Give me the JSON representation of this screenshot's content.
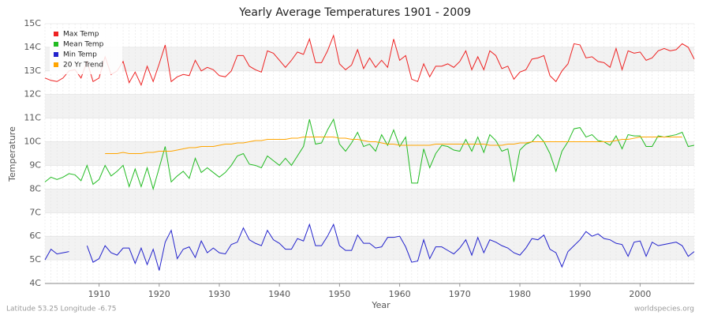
{
  "chart_data": {
    "type": "line",
    "title": "Yearly Average Temperatures 1901 - 2009",
    "x_label": "Year",
    "y_label": "Temperature",
    "footer_left": "Latitude 53.25 Longitude -6.75",
    "footer_right": "worldspecies.org",
    "legend": "top-left",
    "grid": true,
    "xlim": [
      1901,
      2009
    ],
    "xticks": [
      1910,
      1920,
      1930,
      1940,
      1950,
      1960,
      1970,
      1980,
      1990,
      2000
    ],
    "ylim": [
      4,
      15
    ],
    "yticks": [
      {
        "value": 4,
        "label": "4C"
      },
      {
        "value": 5,
        "label": "5C"
      },
      {
        "value": 6,
        "label": "6C"
      },
      {
        "value": 7,
        "label": "7C"
      },
      {
        "value": 8,
        "label": "8C"
      },
      {
        "value": 9,
        "label": "9C"
      },
      {
        "value": 10,
        "label": "10C"
      },
      {
        "value": 11,
        "label": "11C"
      },
      {
        "value": 12,
        "label": "12C"
      },
      {
        "value": 13,
        "label": "13C"
      },
      {
        "value": 14,
        "label": "14C"
      },
      {
        "value": 15,
        "label": "15C"
      }
    ],
    "x": [
      1901,
      1902,
      1903,
      1904,
      1905,
      1906,
      1907,
      1908,
      1909,
      1910,
      1911,
      1912,
      1913,
      1914,
      1915,
      1916,
      1917,
      1918,
      1919,
      1920,
      1921,
      1922,
      1923,
      1924,
      1925,
      1926,
      1927,
      1928,
      1929,
      1930,
      1931,
      1932,
      1933,
      1934,
      1935,
      1936,
      1937,
      1938,
      1939,
      1940,
      1941,
      1942,
      1943,
      1944,
      1945,
      1946,
      1947,
      1948,
      1949,
      1950,
      1951,
      1952,
      1953,
      1954,
      1955,
      1956,
      1957,
      1958,
      1959,
      1960,
      1961,
      1962,
      1963,
      1964,
      1965,
      1966,
      1967,
      1968,
      1969,
      1970,
      1971,
      1972,
      1973,
      1974,
      1975,
      1976,
      1977,
      1978,
      1979,
      1980,
      1981,
      1982,
      1983,
      1984,
      1985,
      1986,
      1987,
      1988,
      1989,
      1990,
      1991,
      1992,
      1993,
      1994,
      1995,
      1996,
      1997,
      1998,
      1999,
      2000,
      2001,
      2002,
      2003,
      2004,
      2005,
      2006,
      2007,
      2008,
      2009
    ],
    "series": [
      {
        "name": "Max Temp",
        "color": "#ee2222",
        "values": [
          12.7,
          12.6,
          12.55,
          12.7,
          13.0,
          13.05,
          12.7,
          13.4,
          12.55,
          12.7,
          13.6,
          12.85,
          13.0,
          13.4,
          12.5,
          12.95,
          12.4,
          13.2,
          12.55,
          13.3,
          14.1,
          12.55,
          12.75,
          12.85,
          12.8,
          13.45,
          13.0,
          13.15,
          13.05,
          12.8,
          12.75,
          13.0,
          13.65,
          13.65,
          13.2,
          13.05,
          12.95,
          13.85,
          13.75,
          13.45,
          13.15,
          13.45,
          13.8,
          13.7,
          14.35,
          13.35,
          13.35,
          13.85,
          14.5,
          13.3,
          13.05,
          13.25,
          13.9,
          13.1,
          13.55,
          13.15,
          13.45,
          13.15,
          14.35,
          13.45,
          13.65,
          12.65,
          12.55,
          13.3,
          12.75,
          13.2,
          13.2,
          13.3,
          13.15,
          13.4,
          13.85,
          13.05,
          13.6,
          13.05,
          13.85,
          13.65,
          13.1,
          13.2,
          12.65,
          12.95,
          13.05,
          13.5,
          13.55,
          13.65,
          12.8,
          12.55,
          13.0,
          13.3,
          14.15,
          14.1,
          13.55,
          13.6,
          13.4,
          13.35,
          13.15,
          13.95,
          13.05,
          13.85,
          13.75,
          13.8,
          13.45,
          13.55,
          13.85,
          13.95,
          13.85,
          13.9,
          14.15,
          14.0,
          13.5
        ]
      },
      {
        "name": "Mean Temp",
        "color": "#22bb22",
        "values": [
          8.3,
          8.5,
          8.4,
          8.5,
          8.65,
          8.6,
          8.35,
          9.0,
          8.2,
          8.4,
          9.0,
          8.55,
          8.75,
          9.0,
          8.1,
          8.85,
          8.1,
          8.9,
          8.0,
          8.9,
          9.8,
          8.3,
          8.55,
          8.75,
          8.45,
          9.3,
          8.7,
          8.9,
          8.7,
          8.5,
          8.7,
          9.0,
          9.4,
          9.5,
          9.05,
          9.0,
          8.9,
          9.4,
          9.2,
          9.0,
          9.3,
          9.0,
          9.4,
          9.8,
          10.95,
          9.9,
          9.95,
          10.5,
          10.95,
          9.9,
          9.6,
          9.95,
          10.4,
          9.8,
          9.9,
          9.6,
          10.3,
          9.85,
          10.5,
          9.8,
          10.2,
          8.25,
          8.25,
          9.7,
          8.9,
          9.5,
          9.85,
          9.8,
          9.65,
          9.6,
          10.1,
          9.6,
          10.2,
          9.55,
          10.3,
          10.05,
          9.6,
          9.7,
          8.3,
          9.65,
          9.9,
          10.0,
          10.3,
          10.0,
          9.5,
          8.75,
          9.6,
          10.0,
          10.55,
          10.6,
          10.2,
          10.3,
          10.05,
          10.0,
          9.85,
          10.25,
          9.7,
          10.3,
          10.25,
          10.25,
          9.8,
          9.8,
          10.25,
          10.2,
          10.25,
          10.3,
          10.4,
          9.8,
          9.85
        ]
      },
      {
        "name": "Min Temp",
        "color": "#2222cc",
        "values": [
          5.0,
          5.45,
          5.25,
          5.3,
          5.35,
          null,
          null,
          5.6,
          4.9,
          5.05,
          5.6,
          5.3,
          5.2,
          5.5,
          5.5,
          4.85,
          5.5,
          4.8,
          5.45,
          4.55,
          5.75,
          6.25,
          5.05,
          5.45,
          5.55,
          5.1,
          5.8,
          5.3,
          5.5,
          5.3,
          5.25,
          5.65,
          5.75,
          6.35,
          5.85,
          5.7,
          5.6,
          6.25,
          5.85,
          5.7,
          5.45,
          5.45,
          5.9,
          5.8,
          6.5,
          5.6,
          5.6,
          6.0,
          6.5,
          5.6,
          5.4,
          5.4,
          6.05,
          5.7,
          5.7,
          5.5,
          5.55,
          5.95,
          5.95,
          6.0,
          5.55,
          4.9,
          4.95,
          5.85,
          5.05,
          5.55,
          5.55,
          5.4,
          5.25,
          5.5,
          5.85,
          5.2,
          5.95,
          5.3,
          5.85,
          5.75,
          5.6,
          5.5,
          5.3,
          5.2,
          5.5,
          5.9,
          5.85,
          6.05,
          5.45,
          5.3,
          4.7,
          5.35,
          5.6,
          5.85,
          6.2,
          6.0,
          6.1,
          5.9,
          5.85,
          5.7,
          5.65,
          5.15,
          5.75,
          5.8,
          5.15,
          5.75,
          5.6,
          5.65,
          5.7,
          5.75,
          5.6,
          5.15,
          5.35
        ]
      },
      {
        "name": "20 Yr Trend",
        "color": "#ffa500",
        "values": [
          null,
          null,
          null,
          null,
          null,
          null,
          null,
          null,
          null,
          null,
          9.5,
          9.5,
          9.5,
          9.55,
          9.5,
          9.5,
          9.5,
          9.55,
          9.55,
          9.6,
          9.6,
          9.6,
          9.65,
          9.7,
          9.75,
          9.75,
          9.8,
          9.8,
          9.8,
          9.85,
          9.9,
          9.9,
          9.95,
          9.95,
          10.0,
          10.05,
          10.05,
          10.1,
          10.1,
          10.1,
          10.1,
          10.15,
          10.15,
          10.2,
          10.2,
          10.2,
          10.2,
          10.2,
          10.2,
          10.15,
          10.15,
          10.1,
          10.1,
          10.05,
          10.0,
          10.0,
          9.95,
          9.9,
          9.9,
          9.85,
          9.85,
          9.85,
          9.85,
          9.85,
          9.85,
          9.9,
          9.9,
          9.9,
          9.9,
          9.9,
          9.9,
          9.9,
          9.9,
          9.9,
          9.85,
          9.85,
          9.85,
          9.9,
          9.9,
          9.95,
          9.95,
          10.0,
          10.0,
          10.0,
          10.0,
          10.0,
          10.0,
          10.0,
          10.0,
          10.0,
          10.0,
          10.0,
          10.0,
          10.0,
          10.0,
          10.05,
          10.1,
          10.1,
          10.15,
          10.2,
          10.2,
          10.2,
          10.2,
          10.2,
          10.2,
          10.2,
          10.2,
          null,
          null
        ]
      }
    ]
  }
}
